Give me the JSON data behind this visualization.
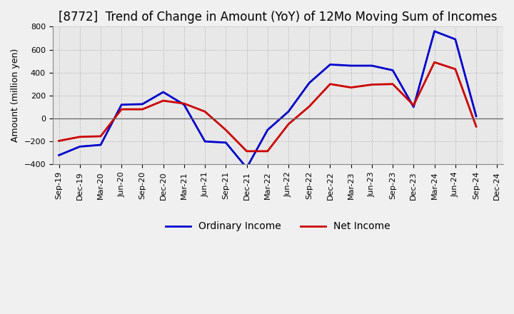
{
  "title": "[8772]  Trend of Change in Amount (YoY) of 12Mo Moving Sum of Incomes",
  "ylabel": "Amount (million yen)",
  "ylim": [
    -400,
    800
  ],
  "yticks": [
    -400,
    -200,
    0,
    200,
    400,
    600,
    800
  ],
  "x_labels": [
    "Sep-19",
    "Dec-19",
    "Mar-20",
    "Jun-20",
    "Sep-20",
    "Dec-20",
    "Mar-21",
    "Jun-21",
    "Sep-21",
    "Dec-21",
    "Mar-22",
    "Jun-22",
    "Sep-22",
    "Dec-22",
    "Mar-23",
    "Jun-23",
    "Sep-23",
    "Dec-23",
    "Mar-24",
    "Jun-24",
    "Sep-24",
    "Dec-24"
  ],
  "ordinary_income": [
    -320,
    -245,
    -230,
    120,
    125,
    230,
    120,
    -200,
    -210,
    -430,
    -100,
    60,
    310,
    470,
    460,
    460,
    420,
    100,
    760,
    690,
    20,
    null
  ],
  "net_income": [
    -195,
    -160,
    -155,
    80,
    80,
    155,
    130,
    60,
    -100,
    -285,
    -285,
    -50,
    105,
    300,
    270,
    295,
    300,
    115,
    490,
    430,
    -70,
    null
  ],
  "ordinary_color": "#0000cc",
  "net_color": "#cc0000",
  "grid_color": "#aaaaaa",
  "background_color": "#f0f0f0",
  "plot_bg_color": "#e8e8e8",
  "title_fontsize": 12,
  "label_fontsize": 9,
  "tick_fontsize": 8,
  "legend_fontsize": 10
}
